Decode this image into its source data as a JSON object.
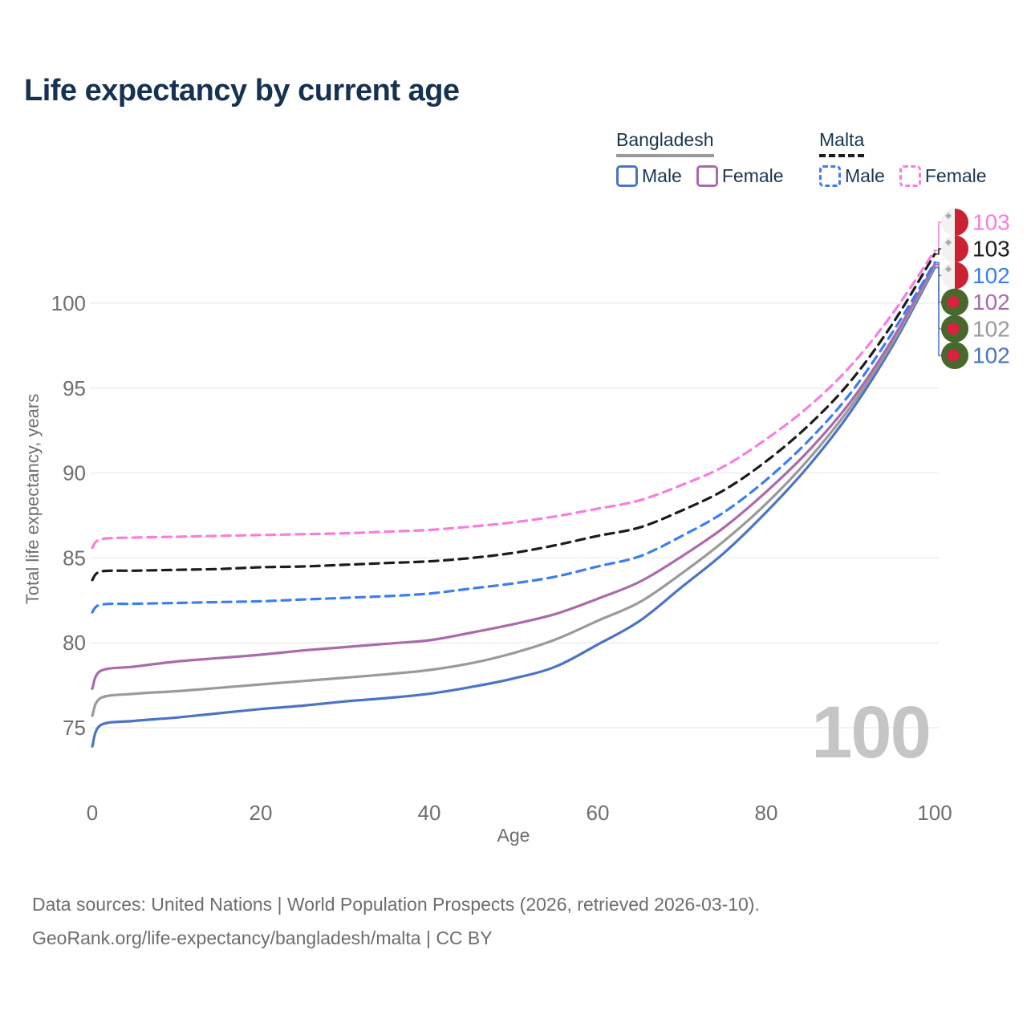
{
  "title": "Life expectancy by current age",
  "legend": {
    "groups": [
      {
        "name": "Bangladesh",
        "swatch_color": "#9a9a9a",
        "swatch_style": "solid",
        "items": [
          {
            "label": "Male",
            "color": "#4b74c5",
            "style": "solid"
          },
          {
            "label": "Female",
            "color": "#ab6aab",
            "style": "solid"
          }
        ]
      },
      {
        "name": "Malta",
        "swatch_color": "#1c1c1c",
        "swatch_style": "dashed",
        "items": [
          {
            "label": "Male",
            "color": "#3c7ef2",
            "style": "dashed"
          },
          {
            "label": "Female",
            "color": "#f97ddf",
            "style": "dashed"
          }
        ]
      }
    ]
  },
  "chart_data": {
    "type": "line",
    "title": "Life expectancy by current age",
    "xlabel": "Age",
    "ylabel": "Total life expectancy, years",
    "xlim": [
      0,
      100
    ],
    "ylim": [
      73,
      104
    ],
    "xticks": [
      0,
      20,
      40,
      60,
      80,
      100
    ],
    "yticks": [
      75,
      80,
      85,
      90,
      95,
      100
    ],
    "grid": "horizontal",
    "hover_age_label": "100",
    "x": [
      0,
      1,
      5,
      10,
      15,
      20,
      25,
      30,
      35,
      40,
      45,
      50,
      55,
      60,
      65,
      70,
      75,
      80,
      85,
      90,
      95,
      100
    ],
    "series": [
      {
        "name": "bangladesh-male",
        "country": "Bangladesh",
        "sex": "Male",
        "color": "#4b74c5",
        "dashed": false,
        "values": [
          73.9,
          75.15,
          75.4,
          75.6,
          75.85,
          76.1,
          76.3,
          76.55,
          76.75,
          77.0,
          77.4,
          77.9,
          78.6,
          79.9,
          81.3,
          83.3,
          85.3,
          87.7,
          90.4,
          93.6,
          97.5,
          102.1
        ]
      },
      {
        "name": "bangladesh-all",
        "country": "Bangladesh",
        "sex": "Both",
        "color": "#9a9a9a",
        "dashed": false,
        "values": [
          75.7,
          76.75,
          77.0,
          77.15,
          77.35,
          77.55,
          77.75,
          77.95,
          78.15,
          78.4,
          78.8,
          79.4,
          80.2,
          81.3,
          82.4,
          84.1,
          86.0,
          88.2,
          90.8,
          93.9,
          97.7,
          102.2
        ]
      },
      {
        "name": "bangladesh-female",
        "country": "Bangladesh",
        "sex": "Female",
        "color": "#ab6aab",
        "dashed": false,
        "values": [
          77.3,
          78.35,
          78.6,
          78.9,
          79.1,
          79.3,
          79.55,
          79.75,
          79.95,
          80.15,
          80.6,
          81.1,
          81.7,
          82.6,
          83.6,
          85.1,
          86.8,
          88.9,
          91.3,
          94.2,
          97.9,
          102.3
        ]
      },
      {
        "name": "malta-male",
        "country": "Malta",
        "sex": "Male",
        "color": "#3c7ef2",
        "dashed": true,
        "values": [
          81.8,
          82.25,
          82.3,
          82.35,
          82.4,
          82.45,
          82.55,
          82.65,
          82.75,
          82.9,
          83.2,
          83.5,
          83.9,
          84.5,
          85.1,
          86.3,
          87.7,
          89.6,
          91.9,
          94.7,
          98.3,
          102.4
        ]
      },
      {
        "name": "malta-all",
        "country": "Malta",
        "sex": "Both",
        "color": "#1c1c1c",
        "dashed": true,
        "values": [
          83.7,
          84.2,
          84.25,
          84.3,
          84.35,
          84.45,
          84.5,
          84.6,
          84.7,
          84.8,
          85.0,
          85.3,
          85.75,
          86.3,
          86.8,
          87.8,
          89.0,
          90.7,
          92.8,
          95.4,
          98.8,
          102.9
        ]
      },
      {
        "name": "malta-female",
        "country": "Malta",
        "sex": "Female",
        "color": "#f97ddf",
        "dashed": true,
        "values": [
          85.6,
          86.1,
          86.2,
          86.25,
          86.3,
          86.35,
          86.4,
          86.45,
          86.55,
          86.65,
          86.85,
          87.1,
          87.45,
          87.9,
          88.4,
          89.3,
          90.4,
          92.0,
          93.9,
          96.3,
          99.4,
          103.1
        ]
      }
    ],
    "end_labels": [
      {
        "series": "malta-female",
        "value": "103",
        "flag": "malta",
        "color": "#f97ddf"
      },
      {
        "series": "malta-all",
        "value": "103",
        "flag": "malta",
        "color": "#1c1c1c"
      },
      {
        "series": "malta-male",
        "value": "102",
        "flag": "malta",
        "color": "#3c7ef2"
      },
      {
        "series": "bangladesh-female",
        "value": "102",
        "flag": "bangladesh",
        "color": "#ab6aab"
      },
      {
        "series": "bangladesh-all",
        "value": "102",
        "flag": "bangladesh",
        "color": "#9a9a9a"
      },
      {
        "series": "bangladesh-male",
        "value": "102",
        "flag": "bangladesh",
        "color": "#4b74c5"
      }
    ],
    "flag_colors": {
      "malta_white": "#f2f2f2",
      "malta_red": "#cb2233",
      "malta_cross_gray": "#a5a5a5",
      "bangladesh_green": "#49682c",
      "bangladesh_red": "#dd2042"
    }
  },
  "footer": {
    "line1": "Data sources: United Nations | World Population Prospects (2026, retrieved 2026-03-10).",
    "line2": "GeoRank.org/life-expectancy/bangladesh/malta | CC BY"
  }
}
